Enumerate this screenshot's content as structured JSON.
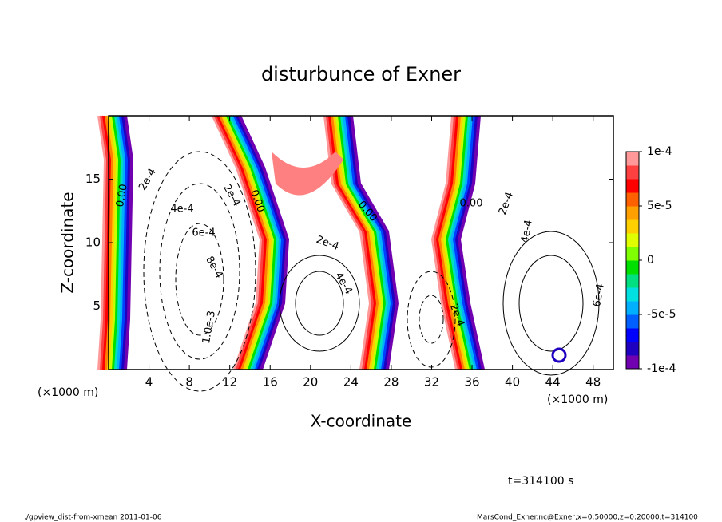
{
  "chart_data": {
    "type": "contour",
    "title": "disturbunce of Exner",
    "x_label": "X-coordinate",
    "y_label": "Z-coordinate",
    "x_unit": "(×1000 m)",
    "xlim": [
      0,
      50
    ],
    "ylim": [
      0,
      20
    ],
    "xticks": [
      4,
      8,
      12,
      16,
      20,
      24,
      28,
      32,
      36,
      40,
      44,
      48
    ],
    "yticks": [
      5,
      10,
      15
    ],
    "colorbar_lim": [
      -0.0001,
      0.0001
    ],
    "colorbar_ticks": [
      {
        "value": 0.0001,
        "label": "1e-4"
      },
      {
        "value": 5e-05,
        "label": "5e-5"
      },
      0,
      {
        "value": -5e-05,
        "label": "-5e-5"
      },
      {
        "value": -0.0001,
        "label": "-1e-4"
      }
    ],
    "contour_labels": [
      "0.00",
      "2e-4",
      "4e-4",
      "6e-4",
      "8e-4",
      "1.0e-3",
      "2e-4",
      "0.00",
      "2e-4",
      "4e-4",
      "0.00",
      "2e-4",
      "0.00",
      "2e-4",
      "4e-4",
      "6e-4"
    ],
    "annotation": "t=314100 s",
    "footer_left": "./gpview_dist-from-xmean  2011-01-06",
    "footer_right": "MarsCond_Exner.nc@Exner,x=0:50000,z=0:20000,t=314100"
  }
}
